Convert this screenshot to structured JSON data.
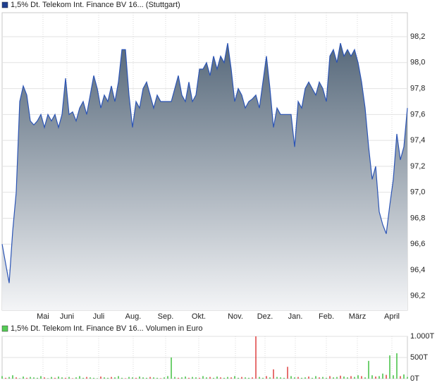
{
  "chart_data": [
    {
      "type": "area",
      "series": [
        {
          "name": "1,5% Dt. Telekom Int. Finance BV 16... (Stuttgart)",
          "color": "#2b54b5",
          "legend_color": "#1f3f8f",
          "values": [
            96.6,
            96.45,
            96.3,
            96.7,
            97.0,
            97.7,
            97.82,
            97.75,
            97.55,
            97.52,
            97.55,
            97.6,
            97.5,
            97.6,
            97.55,
            97.6,
            97.5,
            97.6,
            97.88,
            97.6,
            97.62,
            97.55,
            97.65,
            97.7,
            97.6,
            97.75,
            97.9,
            97.8,
            97.65,
            97.75,
            97.7,
            97.82,
            97.7,
            97.85,
            98.1,
            98.1,
            97.75,
            97.5,
            97.7,
            97.65,
            97.8,
            97.85,
            97.75,
            97.65,
            97.75,
            97.7,
            97.7,
            97.7,
            97.7,
            97.8,
            97.9,
            97.75,
            97.7,
            97.85,
            97.7,
            97.75,
            97.95,
            97.95,
            98.0,
            97.9,
            98.05,
            97.95,
            98.05,
            98.0,
            98.15,
            97.95,
            97.7,
            97.8,
            97.75,
            97.65,
            97.7,
            97.72,
            97.75,
            97.65,
            97.85,
            98.05,
            97.8,
            97.5,
            97.65,
            97.6,
            97.6,
            97.6,
            97.6,
            97.35,
            97.7,
            97.65,
            97.8,
            97.85,
            97.8,
            97.75,
            97.85,
            97.8,
            97.7,
            98.05,
            98.1,
            98.0,
            98.15,
            98.05,
            98.1,
            98.05,
            98.1,
            98.0,
            97.85,
            97.65,
            97.35,
            97.1,
            97.2,
            96.85,
            96.75,
            96.68,
            96.9,
            97.1,
            97.45,
            97.25,
            97.35,
            97.65
          ]
        }
      ],
      "xlim": [
        0,
        115
      ],
      "xticks": [
        {
          "value": 11.6,
          "label": "Mai"
        },
        {
          "value": 18.4,
          "label": "Juni"
        },
        {
          "value": 27.4,
          "label": "Juli"
        },
        {
          "value": 37.2,
          "label": "Aug."
        },
        {
          "value": 46.4,
          "label": "Sep."
        },
        {
          "value": 55.8,
          "label": "Okt."
        },
        {
          "value": 66.2,
          "label": "Nov."
        },
        {
          "value": 74.6,
          "label": "Dez."
        },
        {
          "value": 83.2,
          "label": "Jan."
        },
        {
          "value": 92,
          "label": "Feb."
        },
        {
          "value": 100.8,
          "label": "März"
        },
        {
          "value": 110.6,
          "label": "April"
        }
      ],
      "ylim": [
        96.09,
        98.385
      ],
      "yticks": [
        {
          "value": 96.2,
          "label": "96,2"
        },
        {
          "value": 96.4,
          "label": "96,4"
        },
        {
          "value": 96.6,
          "label": "96,6"
        },
        {
          "value": 96.8,
          "label": "96,8"
        },
        {
          "value": 97.0,
          "label": "97,0"
        },
        {
          "value": 97.2,
          "label": "97,2"
        },
        {
          "value": 97.4,
          "label": "97,4"
        },
        {
          "value": 97.6,
          "label": "97,6"
        },
        {
          "value": 97.8,
          "label": "97,8"
        },
        {
          "value": 98.0,
          "label": "98,0"
        },
        {
          "value": 98.2,
          "label": "98,2"
        }
      ],
      "grid": true
    },
    {
      "type": "bar",
      "series": [
        {
          "name": "1,5% Dt. Telekom Int. Finance BV 16... Volumen in Euro",
          "color": "#3b3",
          "legend_color": "#5c5",
          "values": [
            60,
            20,
            40,
            80,
            30,
            10,
            50,
            20,
            40,
            30,
            20,
            60,
            30,
            10,
            40,
            20,
            50,
            30,
            20,
            40,
            10,
            30,
            60,
            20,
            40,
            30,
            20,
            10,
            50,
            30,
            20,
            40,
            30,
            60,
            20,
            10,
            40,
            30,
            20,
            50,
            30,
            20,
            40,
            30,
            20,
            10,
            30,
            60,
            500,
            40,
            20,
            30,
            50,
            20,
            40,
            30,
            20,
            60,
            30,
            40,
            20,
            50,
            30,
            20,
            40,
            30,
            60,
            20,
            40,
            30,
            20,
            30,
            1000,
            40,
            20,
            60,
            30,
            220,
            40,
            30,
            20,
            280,
            60,
            30,
            40,
            20,
            30,
            50,
            20,
            60,
            30,
            40,
            20,
            60,
            30,
            40,
            70,
            50,
            30,
            60,
            40,
            80,
            60,
            30,
            420,
            80,
            50,
            60,
            120,
            90,
            550,
            80,
            600,
            60,
            100,
            40
          ],
          "colors": [
            "#3b3",
            "#d33",
            "#3b3",
            "#3b3",
            "#d33",
            "#3b3",
            "#3b3",
            "#d33",
            "#3b3",
            "#3b3",
            "#3b3",
            "#3b3",
            "#d33",
            "#3b3",
            "#3b3",
            "#d33",
            "#3b3",
            "#3b3",
            "#d33",
            "#3b3",
            "#d33",
            "#3b3",
            "#3b3",
            "#3b3",
            "#d33",
            "#3b3",
            "#3b3",
            "#3b3",
            "#d33",
            "#3b3",
            "#3b3",
            "#d33",
            "#3b3",
            "#3b3",
            "#3b3",
            "#d33",
            "#3b3",
            "#3b3",
            "#d33",
            "#3b3",
            "#3b3",
            "#3b3",
            "#d33",
            "#3b3",
            "#3b3",
            "#d33",
            "#3b3",
            "#3b3",
            "#3b3",
            "#3b3",
            "#d33",
            "#3b3",
            "#3b3",
            "#d33",
            "#3b3",
            "#3b3",
            "#d33",
            "#3b3",
            "#3b3",
            "#d33",
            "#3b3",
            "#3b3",
            "#d33",
            "#3b3",
            "#3b3",
            "#d33",
            "#3b3",
            "#3b3",
            "#d33",
            "#3b3",
            "#3b3",
            "#d33",
            "#d33",
            "#3b3",
            "#3b3",
            "#d33",
            "#3b3",
            "#d33",
            "#3b3",
            "#3b3",
            "#3b3",
            "#d33",
            "#3b3",
            "#3b3",
            "#d33",
            "#3b3",
            "#3b3",
            "#d33",
            "#3b3",
            "#3b3",
            "#d33",
            "#3b3",
            "#3b3",
            "#d33",
            "#3b3",
            "#3b3",
            "#d33",
            "#3b3",
            "#3b3",
            "#d33",
            "#3b3",
            "#3b3",
            "#d33",
            "#3b3",
            "#3b3",
            "#3b3",
            "#d33",
            "#3b3",
            "#3b3",
            "#d33",
            "#3b3",
            "#3b3",
            "#3b3",
            "#d33",
            "#3b3",
            "#3b3"
          ]
        }
      ],
      "xlim": [
        0,
        115
      ],
      "ylim": [
        0,
        1000
      ],
      "yticks": [
        {
          "value": 0,
          "label": "0T"
        },
        {
          "value": 500,
          "label": "500T"
        },
        {
          "value": 1000,
          "label": "1.000T"
        }
      ],
      "grid": true
    }
  ]
}
